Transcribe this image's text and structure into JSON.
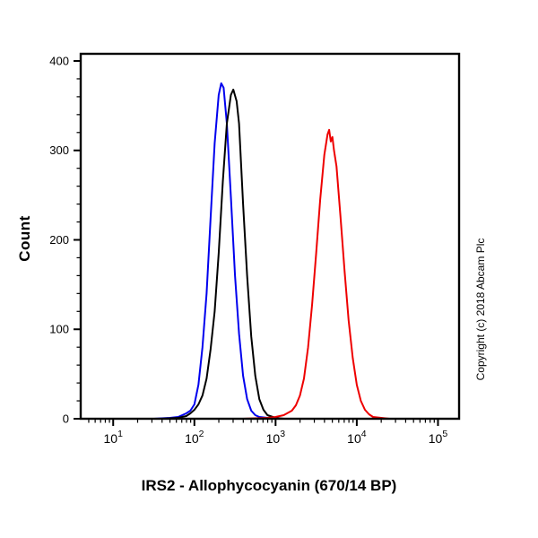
{
  "figure": {
    "copyright": "Copyright (c) 2018 Abcam Plc"
  },
  "chart_data": {
    "type": "line",
    "subtype": "flow-cytometry-histogram",
    "title": "",
    "xlabel": "IRS2 - Allophycocyanin (670/14 BP)",
    "ylabel": "Count",
    "xscale": "log",
    "x_exponent_range": [
      0.6,
      5.26
    ],
    "ylim": [
      0,
      408
    ],
    "grid": false,
    "legend": "none",
    "yticks": [
      {
        "value": 0,
        "label": "0"
      },
      {
        "value": 100,
        "label": "100"
      },
      {
        "value": 200,
        "label": "200"
      },
      {
        "value": 300,
        "label": "300"
      },
      {
        "value": 400,
        "label": "400"
      }
    ],
    "y_minor_step": 20,
    "xticks": [
      {
        "exp": 1,
        "base": "10",
        "sup": "1"
      },
      {
        "exp": 2,
        "base": "10",
        "sup": "2"
      },
      {
        "exp": 3,
        "base": "10",
        "sup": "3"
      },
      {
        "exp": 4,
        "base": "10",
        "sup": "4"
      },
      {
        "exp": 5,
        "base": "10",
        "sup": "5"
      }
    ],
    "series": [
      {
        "name": "blue",
        "color": "#0000ee",
        "peak_x": 215,
        "peak_count": 375,
        "points": [
          [
            0.6,
            0
          ],
          [
            1.5,
            0
          ],
          [
            1.7,
            1
          ],
          [
            1.8,
            2
          ],
          [
            1.85,
            4
          ],
          [
            1.9,
            6
          ],
          [
            1.95,
            9
          ],
          [
            2.0,
            16
          ],
          [
            2.05,
            38
          ],
          [
            2.1,
            80
          ],
          [
            2.15,
            140
          ],
          [
            2.2,
            225
          ],
          [
            2.25,
            308
          ],
          [
            2.3,
            362
          ],
          [
            2.33,
            375
          ],
          [
            2.36,
            370
          ],
          [
            2.4,
            330
          ],
          [
            2.45,
            248
          ],
          [
            2.5,
            160
          ],
          [
            2.55,
            95
          ],
          [
            2.6,
            48
          ],
          [
            2.65,
            22
          ],
          [
            2.7,
            9
          ],
          [
            2.75,
            4
          ],
          [
            2.8,
            2
          ],
          [
            2.9,
            1
          ],
          [
            3.0,
            0
          ],
          [
            5.26,
            0
          ]
        ]
      },
      {
        "name": "black",
        "color": "#000000",
        "peak_x": 290,
        "peak_count": 368,
        "points": [
          [
            0.6,
            0
          ],
          [
            1.6,
            0
          ],
          [
            1.8,
            1
          ],
          [
            1.9,
            3
          ],
          [
            1.95,
            6
          ],
          [
            2.0,
            10
          ],
          [
            2.05,
            16
          ],
          [
            2.1,
            26
          ],
          [
            2.15,
            45
          ],
          [
            2.2,
            78
          ],
          [
            2.25,
            120
          ],
          [
            2.3,
            185
          ],
          [
            2.35,
            265
          ],
          [
            2.4,
            330
          ],
          [
            2.45,
            362
          ],
          [
            2.48,
            368
          ],
          [
            2.52,
            355
          ],
          [
            2.55,
            330
          ],
          [
            2.6,
            240
          ],
          [
            2.65,
            160
          ],
          [
            2.7,
            92
          ],
          [
            2.75,
            48
          ],
          [
            2.8,
            22
          ],
          [
            2.85,
            10
          ],
          [
            2.9,
            4
          ],
          [
            3.0,
            1
          ],
          [
            3.1,
            0
          ],
          [
            5.26,
            0
          ]
        ]
      },
      {
        "name": "red",
        "color": "#ee0000",
        "peak_x": 4600,
        "peak_count": 323,
        "points": [
          [
            0.6,
            0
          ],
          [
            2.6,
            0
          ],
          [
            2.9,
            1
          ],
          [
            3.0,
            2
          ],
          [
            3.1,
            4
          ],
          [
            3.2,
            9
          ],
          [
            3.25,
            15
          ],
          [
            3.3,
            26
          ],
          [
            3.35,
            45
          ],
          [
            3.4,
            80
          ],
          [
            3.45,
            128
          ],
          [
            3.5,
            185
          ],
          [
            3.55,
            245
          ],
          [
            3.6,
            295
          ],
          [
            3.64,
            318
          ],
          [
            3.66,
            323
          ],
          [
            3.68,
            310
          ],
          [
            3.7,
            315
          ],
          [
            3.72,
            300
          ],
          [
            3.75,
            282
          ],
          [
            3.8,
            225
          ],
          [
            3.85,
            165
          ],
          [
            3.9,
            110
          ],
          [
            3.95,
            68
          ],
          [
            4.0,
            38
          ],
          [
            4.05,
            20
          ],
          [
            4.1,
            10
          ],
          [
            4.15,
            5
          ],
          [
            4.2,
            2
          ],
          [
            4.3,
            1
          ],
          [
            4.4,
            0
          ],
          [
            5.26,
            0
          ]
        ]
      }
    ]
  }
}
